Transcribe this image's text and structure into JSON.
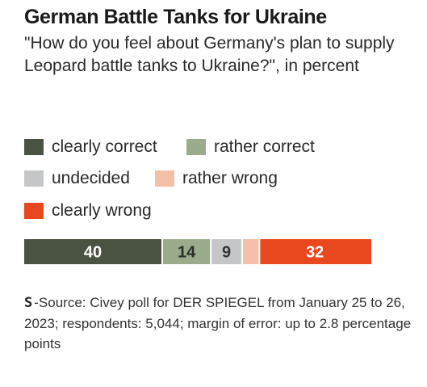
{
  "logo_text": "S",
  "chart_data": {
    "type": "bar",
    "stacked": true,
    "orientation": "horizontal",
    "title": "German Battle Tanks for Ukraine",
    "subtitle": "\"How do you feel about Germany's plan to supply Leopard battle tanks to Ukraine?\", in percent",
    "series": [
      {
        "name": "clearly correct",
        "value": 40,
        "color": "#4a5241",
        "label": "40"
      },
      {
        "name": "rather correct",
        "value": 14,
        "color": "#9aac8b",
        "label": "14"
      },
      {
        "name": "undecided",
        "value": 9,
        "color": "#c5c6c7",
        "label": "9"
      },
      {
        "name": "rather wrong",
        "value": 5,
        "color": "#f4c0a8",
        "label": ""
      },
      {
        "name": "clearly wrong",
        "value": 32,
        "color": "#e9471e",
        "label": "32"
      }
    ],
    "legend_position": "top",
    "grid": false,
    "source": "-Source: Civey poll for DER SPIEGEL from January 25 to 26, 2023; respondents: 5,044; margin of error: up to 2.8 percentage points"
  }
}
